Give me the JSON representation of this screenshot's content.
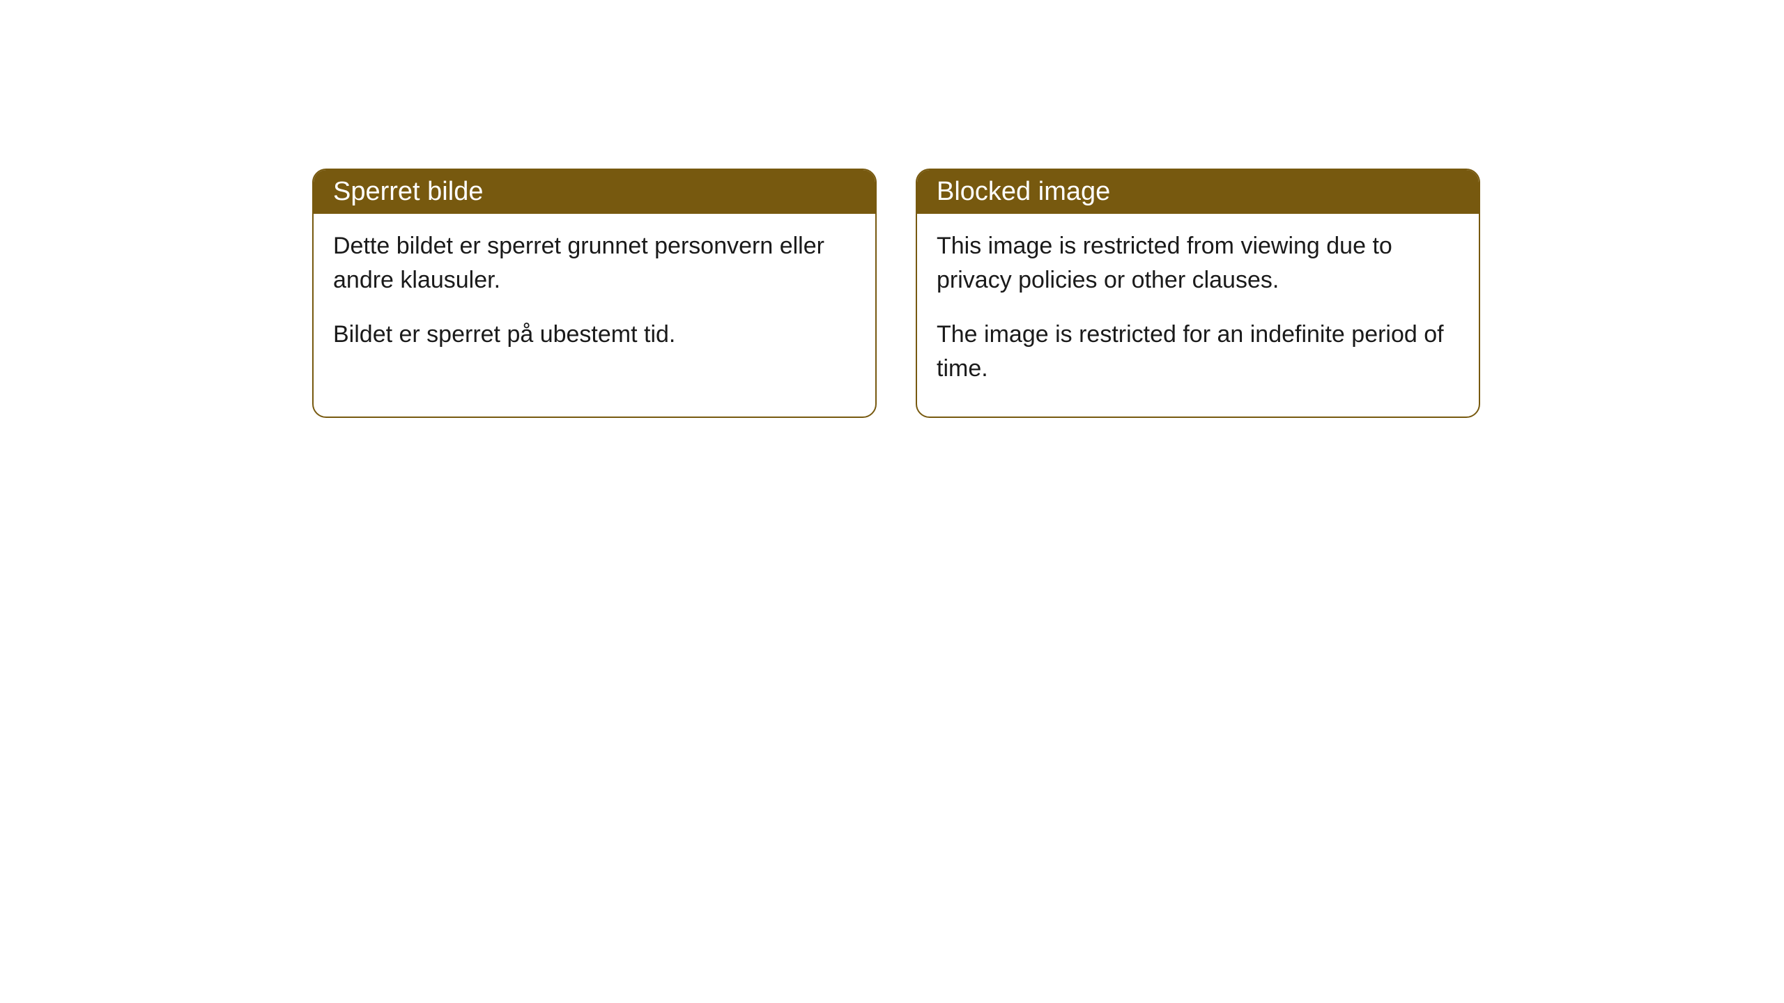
{
  "cards": [
    {
      "title": "Sperret bilde",
      "paragraph1": "Dette bildet er sperret grunnet personvern eller andre klausuler.",
      "paragraph2": "Bildet er sperret på ubestemt tid."
    },
    {
      "title": "Blocked image",
      "paragraph1": "This image is restricted from viewing due to privacy policies or other clauses.",
      "paragraph2": "The image is restricted for an indefinite period of time."
    }
  ],
  "styling": {
    "header_background": "#77590f",
    "header_text_color": "#ffffff",
    "border_color": "#77590f",
    "body_background": "#ffffff",
    "body_text_color": "#1a1a1a",
    "border_radius": 20,
    "title_fontsize": 38,
    "body_fontsize": 34
  }
}
